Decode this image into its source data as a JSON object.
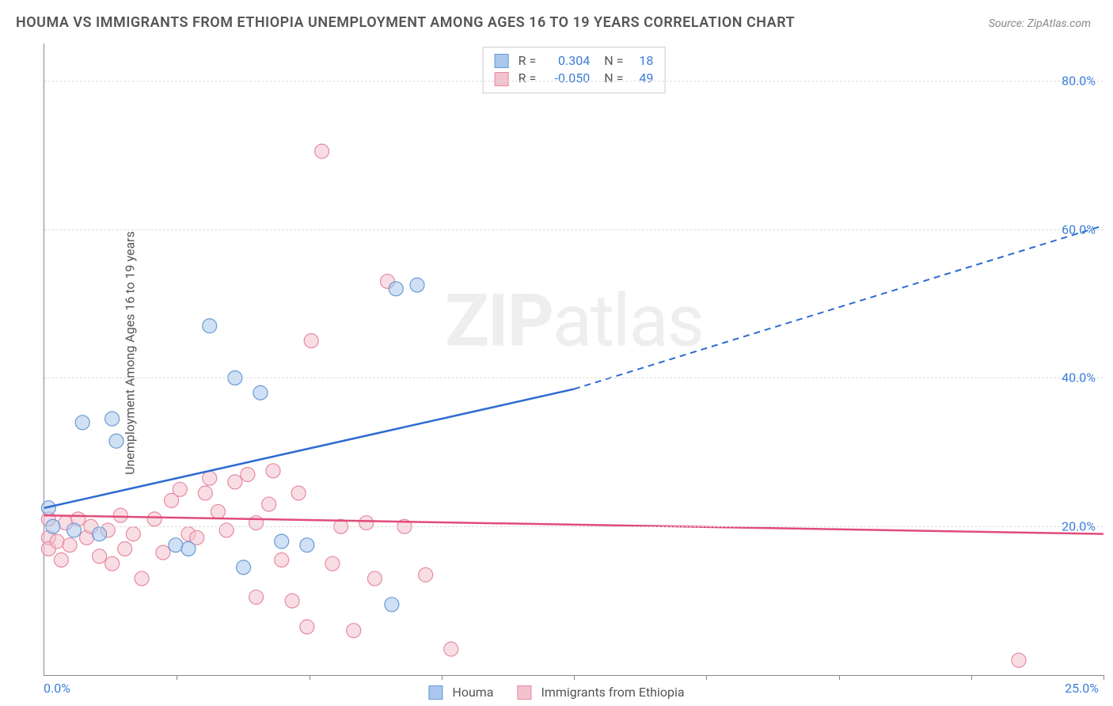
{
  "title": "HOUMA VS IMMIGRANTS FROM ETHIOPIA UNEMPLOYMENT AMONG AGES 16 TO 19 YEARS CORRELATION CHART",
  "source": "Source: ZipAtlas.com",
  "ylabel": "Unemployment Among Ages 16 to 19 years",
  "watermark_zip": "ZIP",
  "watermark_atlas": "atlas",
  "chart": {
    "type": "scatter",
    "xlim": [
      0,
      25
    ],
    "ylim": [
      0,
      85
    ],
    "xticks": [
      0,
      3.125,
      6.25,
      9.375,
      12.5,
      15.625,
      18.75,
      21.875,
      25
    ],
    "xlabel_min": "0.0%",
    "xlabel_max": "25.0%",
    "yticks": [
      {
        "v": 20,
        "label": "20.0%"
      },
      {
        "v": 40,
        "label": "40.0%"
      },
      {
        "v": 60,
        "label": "60.0%"
      },
      {
        "v": 80,
        "label": "80.0%"
      }
    ],
    "background_color": "#ffffff",
    "grid_color": "#dddddd",
    "series": [
      {
        "name": "Houma",
        "fill": "#a9c6ec",
        "stroke": "#6a9ad4",
        "line_color": "#2e6bd1",
        "r_label": "R =",
        "r_value": "0.304",
        "n_label": "N =",
        "n_value": "18",
        "trend": {
          "x1": 0,
          "y1": 22.5,
          "x2": 12.5,
          "y2": 38.5,
          "x2_ext": 25,
          "y2_ext": 60.5
        },
        "points": [
          [
            0.1,
            22.5
          ],
          [
            0.2,
            20.0
          ],
          [
            0.7,
            19.5
          ],
          [
            0.9,
            34.0
          ],
          [
            1.3,
            19.0
          ],
          [
            1.6,
            34.5
          ],
          [
            1.7,
            31.5
          ],
          [
            3.1,
            17.5
          ],
          [
            3.4,
            17.0
          ],
          [
            3.9,
            47.0
          ],
          [
            4.5,
            40.0
          ],
          [
            4.7,
            14.5
          ],
          [
            5.1,
            38.0
          ],
          [
            5.6,
            18.0
          ],
          [
            6.2,
            17.5
          ],
          [
            8.2,
            9.5
          ],
          [
            8.8,
            52.5
          ],
          [
            8.3,
            52.0
          ]
        ]
      },
      {
        "name": "Immigrants from Ethiopia",
        "fill": "#f3c2cd",
        "stroke": "#e78aa2",
        "line_color": "#e14b7a",
        "r_label": "R =",
        "r_value": "-0.050",
        "n_label": "N =",
        "n_value": "49",
        "trend": {
          "x1": 0,
          "y1": 21.5,
          "x2": 25,
          "y2": 19.0
        },
        "points": [
          [
            0.1,
            21.0
          ],
          [
            0.1,
            18.5
          ],
          [
            0.1,
            17.0
          ],
          [
            0.3,
            18.0
          ],
          [
            0.4,
            15.5
          ],
          [
            0.5,
            20.5
          ],
          [
            0.6,
            17.5
          ],
          [
            0.8,
            21.0
          ],
          [
            1.0,
            18.5
          ],
          [
            1.1,
            20.0
          ],
          [
            1.3,
            16.0
          ],
          [
            1.5,
            19.5
          ],
          [
            1.6,
            15.0
          ],
          [
            1.8,
            21.5
          ],
          [
            1.9,
            17.0
          ],
          [
            2.1,
            19.0
          ],
          [
            2.3,
            13.0
          ],
          [
            2.6,
            21.0
          ],
          [
            2.8,
            16.5
          ],
          [
            3.0,
            23.5
          ],
          [
            3.2,
            25.0
          ],
          [
            3.4,
            19.0
          ],
          [
            3.6,
            18.5
          ],
          [
            3.8,
            24.5
          ],
          [
            3.9,
            26.5
          ],
          [
            4.1,
            22.0
          ],
          [
            4.3,
            19.5
          ],
          [
            4.5,
            26.0
          ],
          [
            4.8,
            27.0
          ],
          [
            5.0,
            20.5
          ],
          [
            5.0,
            10.5
          ],
          [
            5.3,
            23.0
          ],
          [
            5.4,
            27.5
          ],
          [
            5.6,
            15.5
          ],
          [
            5.85,
            10.0
          ],
          [
            6.0,
            24.5
          ],
          [
            6.2,
            6.5
          ],
          [
            6.3,
            45.0
          ],
          [
            6.55,
            70.5
          ],
          [
            6.8,
            15.0
          ],
          [
            7.0,
            20.0
          ],
          [
            7.3,
            6.0
          ],
          [
            7.6,
            20.5
          ],
          [
            7.8,
            13.0
          ],
          [
            8.1,
            53.0
          ],
          [
            8.5,
            20.0
          ],
          [
            9.0,
            13.5
          ],
          [
            9.6,
            3.5
          ],
          [
            23.0,
            2.0
          ]
        ]
      }
    ]
  },
  "legend": {
    "items": [
      {
        "label": "Houma",
        "fill": "#a9c6ec",
        "stroke": "#6a9ad4"
      },
      {
        "label": "Immigrants from Ethiopia",
        "fill": "#f3c2cd",
        "stroke": "#e78aa2"
      }
    ]
  }
}
